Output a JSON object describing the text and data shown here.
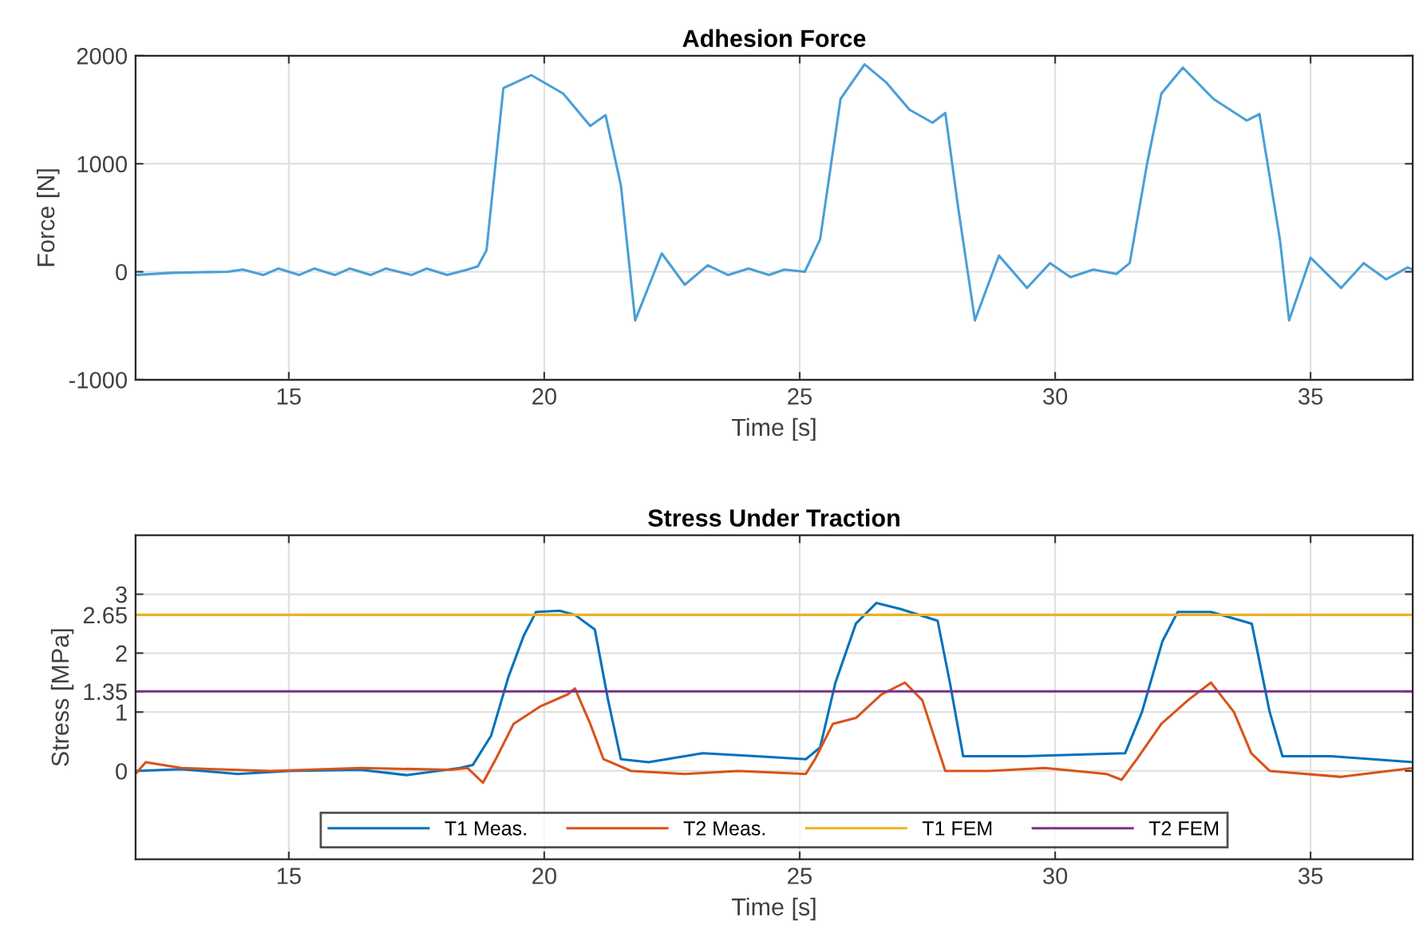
{
  "chart_data": [
    {
      "type": "line",
      "title": "Adhesion Force",
      "xlabel": "Time [s]",
      "ylabel": "Force [N]",
      "xlim": [
        12,
        37
      ],
      "ylim": [
        -1000,
        2000
      ],
      "xticks": [
        15,
        20,
        25,
        30,
        35
      ],
      "yticks": [
        -1000,
        0,
        1000,
        2000
      ],
      "grid": true,
      "series": [
        {
          "color": "#4a9fd8",
          "x": [
            12,
            12.7,
            13.8,
            14.1,
            14.5,
            14.8,
            15.2,
            15.5,
            15.9,
            16.2,
            16.6,
            16.9,
            17.4,
            17.7,
            18.1,
            18.5,
            18.7,
            18.87,
            19.2,
            19.75,
            20.37,
            20.9,
            21.2,
            21.5,
            21.78,
            22.3,
            22.75,
            23.2,
            23.6,
            24,
            24.4,
            24.7,
            25.1,
            25.4,
            25.8,
            26.27,
            26.7,
            27.15,
            27.6,
            27.85,
            28.1,
            28.43,
            28.9,
            29.45,
            29.9,
            30.3,
            30.75,
            31.2,
            31.46,
            31.8,
            32.08,
            32.5,
            33.1,
            33.75,
            34,
            34.4,
            34.58,
            35,
            35.6,
            36.04,
            36.48,
            36.9,
            37
          ],
          "values": [
            -30,
            -10,
            0,
            20,
            -30,
            30,
            -30,
            30,
            -30,
            30,
            -30,
            30,
            -30,
            30,
            -30,
            20,
            50,
            200,
            1700,
            1820,
            1650,
            1350,
            1450,
            800,
            -450,
            170,
            -120,
            60,
            -30,
            30,
            -30,
            20,
            0,
            300,
            1600,
            1920,
            1750,
            1500,
            1380,
            1470,
            600,
            -450,
            150,
            -150,
            80,
            -50,
            20,
            -20,
            80,
            1000,
            1650,
            1890,
            1600,
            1400,
            1460,
            300,
            -450,
            130,
            -150,
            80,
            -70,
            40,
            20
          ]
        }
      ]
    },
    {
      "type": "line",
      "title": "Stress Under Traction",
      "xlabel": "Time [s]",
      "ylabel": "Stress [MPa]",
      "xlim": [
        12,
        37
      ],
      "ylim": [
        -1.5,
        4
      ],
      "xticks": [
        15,
        20,
        25,
        30,
        35
      ],
      "yticks": [
        0,
        1,
        1.35,
        2,
        2.65,
        3
      ],
      "grid": true,
      "legend": "bottom",
      "series": [
        {
          "name": "T1 Meas.",
          "color": "#0072bd",
          "x": [
            12,
            12.9,
            14,
            15,
            16.4,
            17.3,
            18.35,
            18.6,
            18.96,
            19.3,
            19.6,
            19.84,
            20.3,
            20.6,
            20.99,
            21.25,
            21.5,
            22.04,
            23.1,
            24.15,
            25.12,
            25.4,
            25.7,
            26.1,
            26.5,
            26.97,
            27.7,
            27.94,
            28.2,
            29.4,
            31.37,
            31.7,
            32.1,
            32.4,
            33.05,
            33.85,
            34.2,
            34.45,
            35.4,
            37
          ],
          "values": [
            0,
            0.03,
            -0.05,
            0,
            0.02,
            -0.07,
            0.05,
            0.1,
            0.6,
            1.6,
            2.3,
            2.7,
            2.72,
            2.65,
            2.4,
            1.2,
            0.2,
            0.15,
            0.3,
            0.25,
            0.2,
            0.4,
            1.5,
            2.5,
            2.85,
            2.75,
            2.55,
            1.5,
            0.25,
            0.25,
            0.3,
            1.0,
            2.2,
            2.7,
            2.7,
            2.5,
            1.0,
            0.25,
            0.25,
            0.15
          ]
        },
        {
          "name": "T2 Meas.",
          "color": "#d95319",
          "x": [
            12,
            12.2,
            12.9,
            14.65,
            16.4,
            18.17,
            18.5,
            18.8,
            19.05,
            19.4,
            19.93,
            20.46,
            20.6,
            20.9,
            21.16,
            21.7,
            22.75,
            23.8,
            25.12,
            25.3,
            25.65,
            26.1,
            26.6,
            27.06,
            27.4,
            27.85,
            28.7,
            29.8,
            31,
            31.3,
            31.6,
            32.08,
            32.6,
            33.05,
            33.5,
            33.84,
            34.2,
            35.6,
            37
          ],
          "values": [
            -0.05,
            0.15,
            0.05,
            0,
            0.05,
            0.02,
            0.05,
            -0.2,
            0.2,
            0.8,
            1.1,
            1.3,
            1.4,
            0.8,
            0.2,
            0,
            -0.05,
            0,
            -0.05,
            0.2,
            0.8,
            0.9,
            1.3,
            1.5,
            1.2,
            0,
            0,
            0.05,
            -0.05,
            -0.15,
            0.2,
            0.8,
            1.2,
            1.5,
            1.0,
            0.3,
            0,
            -0.1,
            0.05
          ]
        },
        {
          "name": "T1 FEM",
          "color": "#edb120",
          "x": [
            12,
            37
          ],
          "values": [
            2.65,
            2.65
          ]
        },
        {
          "name": "T2 FEM",
          "color": "#7e2f8e",
          "x": [
            12,
            37
          ],
          "values": [
            1.35,
            1.35
          ]
        }
      ]
    }
  ]
}
